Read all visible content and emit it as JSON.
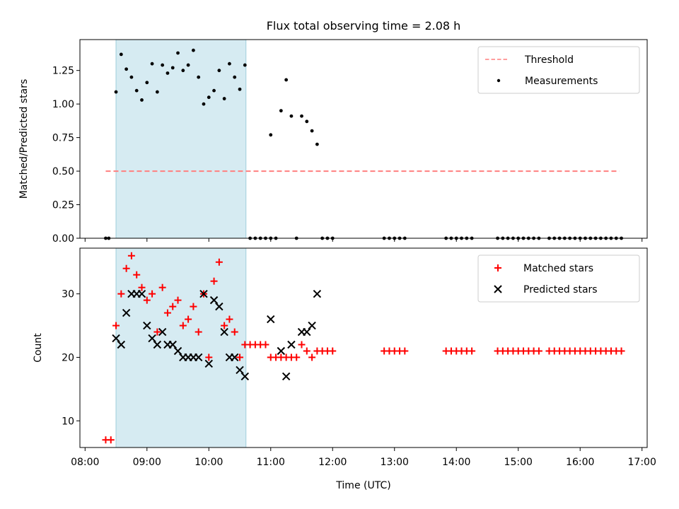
{
  "chart_data": [
    {
      "type": "scatter",
      "title": "Flux total observing time = 2.08 h",
      "xlabel": "",
      "ylabel": "Matched/Predicted stars",
      "ylim": [
        0,
        1.48
      ],
      "yticks": [
        0.0,
        0.25,
        0.5,
        0.75,
        1.0,
        1.25
      ],
      "ytick_labels": [
        "0.00",
        "0.25",
        "0.50",
        "0.75",
        "1.00",
        "1.25"
      ],
      "highlight_span": [
        "08:30",
        "10:36"
      ],
      "legend_position": "top-right",
      "series": [
        {
          "name": "Threshold",
          "kind": "line",
          "style": "dashed",
          "color": "#ff7f7f",
          "points": [
            [
              "08:20",
              0.5
            ],
            [
              "16:38",
              0.5
            ]
          ]
        },
        {
          "name": "Measurements",
          "kind": "points",
          "marker": "dot",
          "color": "#000000",
          "points": [
            [
              "08:20",
              0
            ],
            [
              "08:23",
              0
            ],
            [
              "08:30",
              1.09
            ],
            [
              "08:35",
              1.37
            ],
            [
              "08:40",
              1.26
            ],
            [
              "08:45",
              1.2
            ],
            [
              "08:50",
              1.1
            ],
            [
              "08:55",
              1.03
            ],
            [
              "09:00",
              1.16
            ],
            [
              "09:05",
              1.3
            ],
            [
              "09:10",
              1.09
            ],
            [
              "09:15",
              1.29
            ],
            [
              "09:20",
              1.23
            ],
            [
              "09:25",
              1.27
            ],
            [
              "09:30",
              1.38
            ],
            [
              "09:35",
              1.25
            ],
            [
              "09:40",
              1.29
            ],
            [
              "09:45",
              1.4
            ],
            [
              "09:50",
              1.2
            ],
            [
              "09:55",
              1.0
            ],
            [
              "10:00",
              1.05
            ],
            [
              "10:05",
              1.1
            ],
            [
              "10:10",
              1.25
            ],
            [
              "10:15",
              1.04
            ],
            [
              "10:20",
              1.3
            ],
            [
              "10:25",
              1.2
            ],
            [
              "10:30",
              1.11
            ],
            [
              "10:35",
              1.29
            ],
            [
              "10:40",
              0
            ],
            [
              "10:45",
              0
            ],
            [
              "10:50",
              0
            ],
            [
              "10:55",
              0
            ],
            [
              "11:00",
              0
            ],
            [
              "11:00",
              0.77
            ],
            [
              "11:05",
              0
            ],
            [
              "11:10",
              0.95
            ],
            [
              "11:15",
              1.18
            ],
            [
              "11:20",
              0.91
            ],
            [
              "11:25",
              0
            ],
            [
              "11:30",
              0.91
            ],
            [
              "11:35",
              0.87
            ],
            [
              "11:40",
              0.8
            ],
            [
              "11:45",
              0.7
            ],
            [
              "11:50",
              0
            ],
            [
              "11:55",
              0
            ],
            [
              "12:00",
              0
            ],
            [
              "12:50",
              0
            ],
            [
              "12:55",
              0
            ],
            [
              "13:00",
              0
            ],
            [
              "13:05",
              0
            ],
            [
              "13:10",
              0
            ],
            [
              "13:50",
              0
            ],
            [
              "13:55",
              0
            ],
            [
              "14:00",
              0
            ],
            [
              "14:05",
              0
            ],
            [
              "14:10",
              0
            ],
            [
              "14:15",
              0
            ],
            [
              "14:40",
              0
            ],
            [
              "14:45",
              0
            ],
            [
              "14:50",
              0
            ],
            [
              "14:55",
              0
            ],
            [
              "15:00",
              0
            ],
            [
              "15:05",
              0
            ],
            [
              "15:10",
              0
            ],
            [
              "15:15",
              0
            ],
            [
              "15:20",
              0
            ],
            [
              "15:30",
              0
            ],
            [
              "15:35",
              0
            ],
            [
              "15:40",
              0
            ],
            [
              "15:45",
              0
            ],
            [
              "15:50",
              0
            ],
            [
              "15:55",
              0
            ],
            [
              "16:00",
              0
            ],
            [
              "16:05",
              0
            ],
            [
              "16:10",
              0
            ],
            [
              "16:15",
              0
            ],
            [
              "16:20",
              0
            ],
            [
              "16:25",
              0
            ],
            [
              "16:30",
              0
            ],
            [
              "16:35",
              0
            ],
            [
              "16:40",
              0
            ]
          ]
        }
      ]
    },
    {
      "type": "scatter",
      "title": "",
      "xlabel": "Time (UTC)",
      "ylabel": "Count",
      "ylim": [
        5.8,
        37.2
      ],
      "yticks": [
        10,
        20,
        30
      ],
      "ytick_labels": [
        "10",
        "20",
        "30"
      ],
      "xlim": [
        "07:55",
        "17:05"
      ],
      "xticks": [
        "08:00",
        "09:00",
        "10:00",
        "11:00",
        "12:00",
        "13:00",
        "14:00",
        "15:00",
        "16:00",
        "17:00"
      ],
      "xtick_labels": [
        "08:00",
        "09:00",
        "10:00",
        "11:00",
        "12:00",
        "13:00",
        "14:00",
        "15:00",
        "16:00",
        "17:00"
      ],
      "highlight_span": [
        "08:30",
        "10:36"
      ],
      "legend_position": "top-right",
      "series": [
        {
          "name": "Matched stars",
          "kind": "points",
          "marker": "plus",
          "color": "#ff0000",
          "points": [
            [
              "08:20",
              7
            ],
            [
              "08:25",
              7
            ],
            [
              "08:30",
              25
            ],
            [
              "08:35",
              30
            ],
            [
              "08:40",
              34
            ],
            [
              "08:45",
              36
            ],
            [
              "08:50",
              33
            ],
            [
              "08:55",
              31
            ],
            [
              "09:00",
              29
            ],
            [
              "09:05",
              30
            ],
            [
              "09:10",
              24
            ],
            [
              "09:15",
              31
            ],
            [
              "09:20",
              27
            ],
            [
              "09:25",
              28
            ],
            [
              "09:30",
              29
            ],
            [
              "09:35",
              25
            ],
            [
              "09:40",
              26
            ],
            [
              "09:45",
              28
            ],
            [
              "09:50",
              24
            ],
            [
              "09:55",
              30
            ],
            [
              "10:00",
              20
            ],
            [
              "10:05",
              32
            ],
            [
              "10:10",
              35
            ],
            [
              "10:15",
              25
            ],
            [
              "10:20",
              26
            ],
            [
              "10:25",
              24
            ],
            [
              "10:30",
              20
            ],
            [
              "10:35",
              22
            ],
            [
              "10:40",
              22
            ],
            [
              "10:45",
              22
            ],
            [
              "10:50",
              22
            ],
            [
              "10:55",
              22
            ],
            [
              "11:00",
              20
            ],
            [
              "11:05",
              20
            ],
            [
              "11:10",
              20
            ],
            [
              "11:15",
              20
            ],
            [
              "11:20",
              20
            ],
            [
              "11:25",
              20
            ],
            [
              "11:30",
              22
            ],
            [
              "11:35",
              21
            ],
            [
              "11:40",
              20
            ],
            [
              "11:45",
              21
            ],
            [
              "11:50",
              21
            ],
            [
              "11:55",
              21
            ],
            [
              "12:00",
              21
            ],
            [
              "12:50",
              21
            ],
            [
              "12:55",
              21
            ],
            [
              "13:00",
              21
            ],
            [
              "13:05",
              21
            ],
            [
              "13:10",
              21
            ],
            [
              "13:50",
              21
            ],
            [
              "13:55",
              21
            ],
            [
              "14:00",
              21
            ],
            [
              "14:05",
              21
            ],
            [
              "14:10",
              21
            ],
            [
              "14:15",
              21
            ],
            [
              "14:40",
              21
            ],
            [
              "14:45",
              21
            ],
            [
              "14:50",
              21
            ],
            [
              "14:55",
              21
            ],
            [
              "15:00",
              21
            ],
            [
              "15:05",
              21
            ],
            [
              "15:10",
              21
            ],
            [
              "15:15",
              21
            ],
            [
              "15:20",
              21
            ],
            [
              "15:30",
              21
            ],
            [
              "15:35",
              21
            ],
            [
              "15:40",
              21
            ],
            [
              "15:45",
              21
            ],
            [
              "15:50",
              21
            ],
            [
              "15:55",
              21
            ],
            [
              "16:00",
              21
            ],
            [
              "16:05",
              21
            ],
            [
              "16:10",
              21
            ],
            [
              "16:15",
              21
            ],
            [
              "16:20",
              21
            ],
            [
              "16:25",
              21
            ],
            [
              "16:30",
              21
            ],
            [
              "16:35",
              21
            ],
            [
              "16:40",
              21
            ]
          ]
        },
        {
          "name": "Predicted stars",
          "kind": "points",
          "marker": "x",
          "color": "#000000",
          "points": [
            [
              "08:30",
              23
            ],
            [
              "08:35",
              22
            ],
            [
              "08:40",
              27
            ],
            [
              "08:45",
              30
            ],
            [
              "08:50",
              30
            ],
            [
              "08:55",
              30
            ],
            [
              "09:00",
              25
            ],
            [
              "09:05",
              23
            ],
            [
              "09:10",
              22
            ],
            [
              "09:15",
              24
            ],
            [
              "09:20",
              22
            ],
            [
              "09:25",
              22
            ],
            [
              "09:30",
              21
            ],
            [
              "09:35",
              20
            ],
            [
              "09:40",
              20
            ],
            [
              "09:45",
              20
            ],
            [
              "09:50",
              20
            ],
            [
              "09:55",
              30
            ],
            [
              "10:00",
              19
            ],
            [
              "10:05",
              29
            ],
            [
              "10:10",
              28
            ],
            [
              "10:15",
              24
            ],
            [
              "10:20",
              20
            ],
            [
              "10:25",
              20
            ],
            [
              "10:30",
              18
            ],
            [
              "10:35",
              17
            ],
            [
              "11:00",
              26
            ],
            [
              "11:10",
              21
            ],
            [
              "11:15",
              17
            ],
            [
              "11:20",
              22
            ],
            [
              "11:30",
              24
            ],
            [
              "11:35",
              24
            ],
            [
              "11:40",
              25
            ],
            [
              "11:45",
              30
            ]
          ]
        }
      ]
    }
  ]
}
